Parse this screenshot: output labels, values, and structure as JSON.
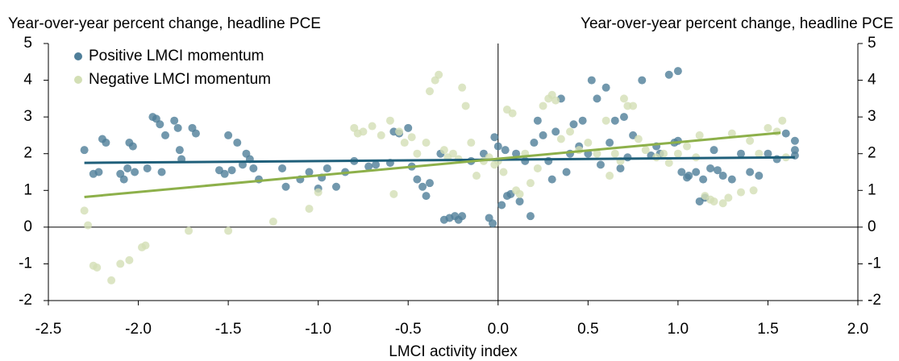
{
  "chart_data": {
    "type": "scatter",
    "y_label": "Year-over-year percent change, headline PCE",
    "y2_label": "Year-over-year percent change, headline PCE",
    "x_label": "LMCI activity index",
    "xlim": [
      -2.5,
      2.0
    ],
    "xticks": [
      {
        "value": -2.5,
        "label": "-2.5"
      },
      {
        "value": -2.0,
        "label": "-2.0"
      },
      {
        "value": -1.5,
        "label": "-1.5"
      },
      {
        "value": -1.0,
        "label": "-1.0"
      },
      {
        "value": -0.5,
        "label": "-0.5"
      },
      {
        "value": 0,
        "label": "0.0"
      },
      {
        "value": 0.5,
        "label": "0.5"
      },
      {
        "value": 1.0,
        "label": "1.0"
      },
      {
        "value": 1.5,
        "label": "1.5"
      },
      {
        "value": 2.0,
        "label": "2.0"
      }
    ],
    "ylim": [
      -2,
      5
    ],
    "yticks": [
      5,
      4,
      3,
      2,
      1,
      0,
      -1,
      -2
    ],
    "y2lim": [
      -2,
      5
    ],
    "y2ticks": [
      5,
      4,
      3,
      2,
      1,
      0,
      -1,
      -2
    ],
    "legend": "upper left",
    "series": [
      {
        "name": "Positive LMCI momentum",
        "color": "#4f7e99",
        "trend_color": "#1f5f7a",
        "x": [
          -2.3,
          -2.25,
          -2.22,
          -2.2,
          -2.18,
          -2.1,
          -2.08,
          -2.06,
          -2.05,
          -2.03,
          -2.02,
          -1.95,
          -1.92,
          -1.9,
          -1.88,
          -1.87,
          -1.85,
          -1.8,
          -1.78,
          -1.77,
          -1.76,
          -1.7,
          -1.68,
          -1.55,
          -1.52,
          -1.5,
          -1.48,
          -1.45,
          -1.42,
          -1.4,
          -1.38,
          -1.36,
          -1.33,
          -1.2,
          -1.18,
          -1.1,
          -1.05,
          -1.0,
          -0.98,
          -0.95,
          -0.9,
          -0.85,
          -0.8,
          -0.72,
          -0.68,
          -0.6,
          -0.58,
          -0.55,
          -0.5,
          -0.48,
          -0.45,
          -0.42,
          -0.4,
          -0.38,
          -0.32,
          -0.3,
          -0.27,
          -0.24,
          -0.22,
          -0.2,
          -0.15,
          -0.08,
          -0.05,
          -0.03,
          -0.02,
          0.0,
          0.02,
          0.04,
          0.05,
          0.07,
          0.1,
          0.12,
          0.15,
          0.18,
          0.2,
          0.22,
          0.25,
          0.28,
          0.3,
          0.32,
          0.35,
          0.38,
          0.4,
          0.42,
          0.45,
          0.47,
          0.5,
          0.52,
          0.55,
          0.57,
          0.6,
          0.62,
          0.65,
          0.68,
          0.7,
          0.72,
          0.75,
          0.8,
          0.85,
          0.88,
          0.9,
          0.95,
          0.98,
          1.0,
          1.02,
          1.05,
          1.06,
          1.0,
          1.1,
          1.12,
          1.14,
          1.15,
          1.18,
          1.2,
          1.22,
          1.25,
          1.3,
          1.35,
          1.4,
          1.45,
          1.5,
          1.55,
          1.6,
          1.65,
          1.65,
          1.65
        ],
        "y": [
          2.1,
          1.45,
          1.5,
          2.4,
          2.3,
          1.45,
          1.3,
          1.6,
          2.3,
          2.2,
          1.5,
          1.6,
          3.0,
          2.95,
          2.8,
          1.5,
          2.5,
          2.9,
          2.7,
          2.1,
          1.85,
          2.7,
          2.55,
          1.55,
          1.45,
          2.5,
          1.55,
          2.3,
          1.7,
          2.0,
          1.85,
          1.6,
          1.3,
          1.6,
          1.1,
          1.3,
          1.5,
          1.05,
          1.35,
          1.6,
          1.1,
          1.5,
          1.8,
          1.65,
          1.7,
          1.75,
          2.6,
          2.55,
          2.7,
          1.65,
          1.3,
          1.1,
          0.85,
          1.2,
          2.0,
          0.2,
          0.25,
          0.3,
          0.2,
          0.3,
          1.8,
          2.0,
          0.25,
          0.1,
          2.45,
          2.2,
          0.6,
          2.1,
          0.85,
          0.9,
          2.0,
          0.7,
          1.8,
          0.3,
          2.3,
          2.9,
          2.5,
          1.8,
          1.3,
          2.6,
          3.5,
          1.5,
          2.0,
          2.8,
          2.2,
          2.9,
          2.0,
          4.0,
          3.5,
          1.7,
          3.8,
          2.3,
          2.9,
          1.6,
          3.0,
          1.9,
          2.5,
          4.0,
          1.95,
          2.2,
          2.0,
          4.15,
          2.3,
          2.35,
          1.5,
          1.35,
          1.4,
          4.25,
          1.5,
          0.7,
          1.3,
          0.8,
          1.6,
          2.1,
          1.55,
          1.4,
          1.3,
          2.0,
          1.5,
          1.4,
          2.0,
          1.85,
          2.55,
          2.1,
          1.95,
          2.35
        ],
        "trend": {
          "x": [
            -2.3,
            1.65
          ],
          "y": [
            1.75,
            1.9
          ]
        }
      },
      {
        "name": "Negative LMCI momentum",
        "color": "#d3dfb5",
        "trend_color": "#8db04a",
        "x": [
          -2.3,
          -2.28,
          -2.25,
          -2.23,
          -2.15,
          -2.1,
          -2.05,
          -1.98,
          -1.96,
          -1.72,
          -1.5,
          -1.25,
          -1.05,
          -1.0,
          -0.8,
          -0.78,
          -0.75,
          -0.7,
          -0.65,
          -0.6,
          -0.58,
          -0.55,
          -0.52,
          -0.48,
          -0.45,
          -0.4,
          -0.38,
          -0.35,
          -0.33,
          -0.3,
          -0.28,
          -0.25,
          -0.22,
          -0.2,
          -0.18,
          -0.15,
          -0.12,
          -0.08,
          -0.05,
          -0.02,
          0.0,
          0.03,
          0.05,
          0.08,
          0.1,
          0.12,
          0.15,
          0.18,
          0.22,
          0.25,
          0.28,
          0.3,
          0.32,
          0.35,
          0.4,
          0.45,
          0.5,
          0.55,
          0.6,
          0.62,
          0.65,
          0.68,
          0.7,
          0.72,
          0.75,
          0.78,
          0.82,
          0.88,
          0.92,
          0.95,
          1.0,
          1.05,
          1.1,
          1.12,
          1.15,
          1.18,
          1.2,
          1.25,
          1.28,
          1.3,
          1.35,
          1.4,
          1.42,
          1.45,
          1.5,
          1.55,
          1.58,
          1.6
        ],
        "y": [
          0.45,
          0.05,
          -1.05,
          -1.1,
          -1.45,
          -1.0,
          -0.9,
          -0.55,
          -0.5,
          -0.1,
          -0.1,
          0.15,
          0.5,
          0.95,
          2.7,
          2.55,
          2.6,
          2.75,
          2.5,
          2.9,
          0.9,
          2.6,
          2.3,
          2.45,
          2.0,
          2.3,
          3.7,
          4.0,
          4.15,
          2.1,
          1.9,
          2.0,
          1.85,
          3.8,
          3.3,
          2.3,
          1.4,
          1.8,
          1.9,
          1.7,
          1.8,
          1.5,
          3.2,
          3.1,
          1.0,
          0.9,
          2.0,
          1.2,
          1.6,
          3.3,
          3.5,
          3.6,
          3.45,
          2.4,
          2.6,
          2.1,
          2.3,
          2.0,
          2.9,
          1.4,
          2.0,
          1.8,
          3.5,
          3.3,
          3.3,
          2.4,
          2.1,
          1.9,
          2.0,
          1.75,
          2.0,
          2.2,
          1.9,
          2.5,
          0.85,
          0.75,
          0.7,
          0.65,
          0.8,
          2.55,
          0.95,
          2.35,
          1.0,
          2.0,
          2.7,
          2.6,
          2.9,
          1.9
        ],
        "trend": {
          "x": [
            -2.3,
            1.57
          ],
          "y": [
            0.82,
            2.57
          ]
        }
      }
    ]
  }
}
